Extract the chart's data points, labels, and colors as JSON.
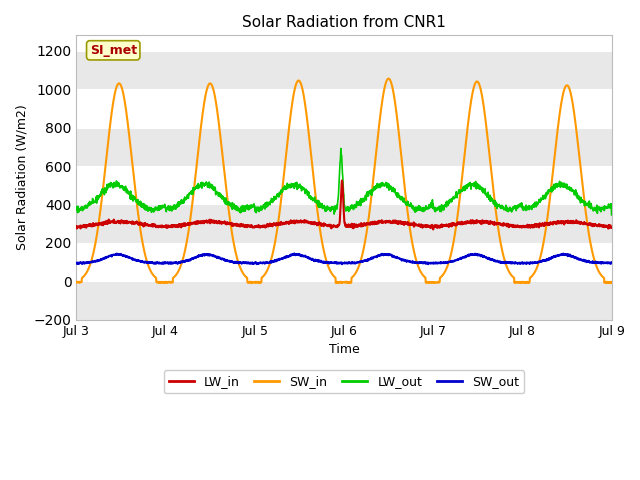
{
  "title": "Solar Radiation from CNR1",
  "xlabel": "Time",
  "ylabel": "Solar Radiation (W/m2)",
  "ylim": [
    -200,
    1280
  ],
  "yticks": [
    -200,
    0,
    200,
    400,
    600,
    800,
    1000,
    1200
  ],
  "xlim": [
    0,
    144
  ],
  "xtick_positions": [
    0,
    24,
    48,
    72,
    96,
    120,
    144
  ],
  "xtick_labels": [
    "Jul 3",
    "Jul 4",
    "Jul 5",
    "Jul 6",
    "Jul 7",
    "Jul 8",
    "Jul 9"
  ],
  "annotation_text": "SI_met",
  "annotation_color": "#aa0000",
  "annotation_bg": "#ffffcc",
  "annotation_border": "#999900",
  "fig_bg_color": "#ffffff",
  "plot_bg_color": "#ffffff",
  "lw_in_color": "#cc0000",
  "sw_in_color": "#ff9900",
  "lw_out_color": "#00cc00",
  "sw_out_color": "#0000cc",
  "grid_color": "#dddddd",
  "band_color": "#e8e8e8"
}
